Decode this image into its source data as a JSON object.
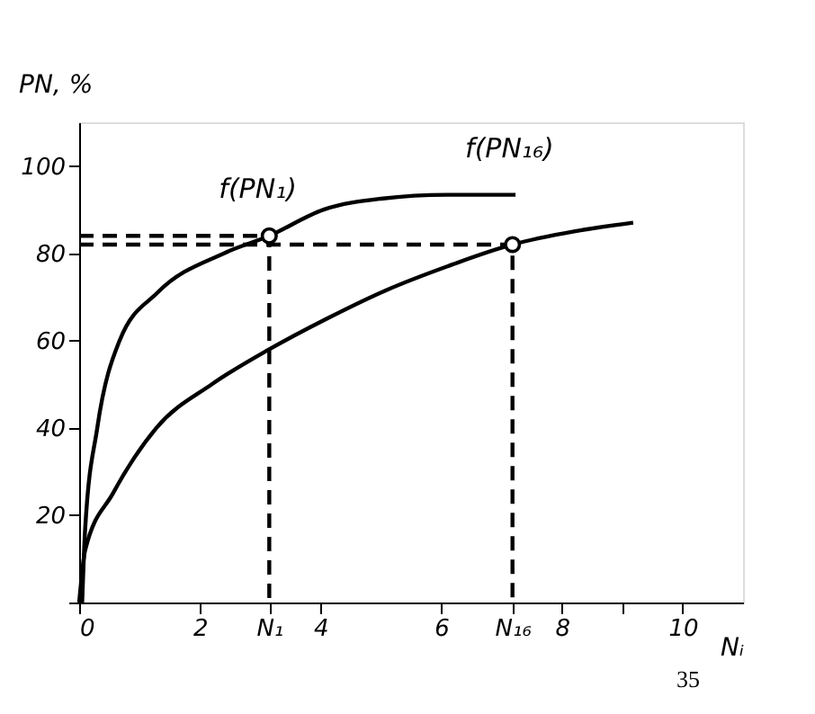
{
  "chart_data": {
    "type": "line",
    "xlabel": "Nᵢ",
    "ylabel": "PN, %",
    "xlim": [
      0,
      11
    ],
    "ylim": [
      0,
      110
    ],
    "xticks": [
      0,
      2,
      {
        "value": 3.15,
        "label": "N₁"
      },
      4,
      6,
      {
        "value": 7.18,
        "label": "N₁₆"
      },
      8,
      {
        "value": 9,
        "label": null
      },
      10
    ],
    "yticks": [
      {
        "value": 0,
        "label": null
      },
      20,
      40,
      60,
      80,
      100
    ],
    "grid": false,
    "marker": "none",
    "line_style": "solid",
    "series": [
      {
        "color": "#000000",
        "x": [
          0.05,
          0.1,
          0.3,
          0.67,
          1.3,
          2.4,
          3.15,
          4.05,
          5.0,
          6.1,
          7.23
        ],
        "values": [
          0,
          17,
          40,
          60,
          71,
          80,
          84,
          90,
          92.5,
          93.4,
          93.4
        ]
      },
      {
        "color": "#000000",
        "x": [
          0,
          0.1,
          0.56,
          1.28,
          2.2,
          3.15,
          4.1,
          5.08,
          6.1,
          7.18,
          8.2,
          9.18
        ],
        "values": [
          0,
          12,
          25,
          40,
          50,
          58,
          65,
          71.5,
          77,
          82,
          85,
          87
        ]
      },
      {
        "type": "line",
        "line_style": "dashed",
        "color": "#000000",
        "x": [
          0,
          3.15,
          3.15
        ],
        "values": [
          84,
          84,
          0
        ]
      },
      {
        "type": "line",
        "line_style": "dashed",
        "color": "#000000",
        "x": [
          0,
          7.18,
          7.18
        ],
        "values": [
          82,
          82,
          0
        ]
      },
      {
        "type": "scatter",
        "marker": "circle",
        "color": "#000000",
        "x": [
          3.15,
          7.18
        ],
        "values": [
          84,
          82
        ]
      }
    ],
    "annotations": [
      {
        "text": "f(PN₁)",
        "x": 3.15,
        "y": 84
      },
      {
        "text": "f(PN₁₆)",
        "x": 7.23,
        "y": 93.4
      },
      "35"
    ]
  }
}
